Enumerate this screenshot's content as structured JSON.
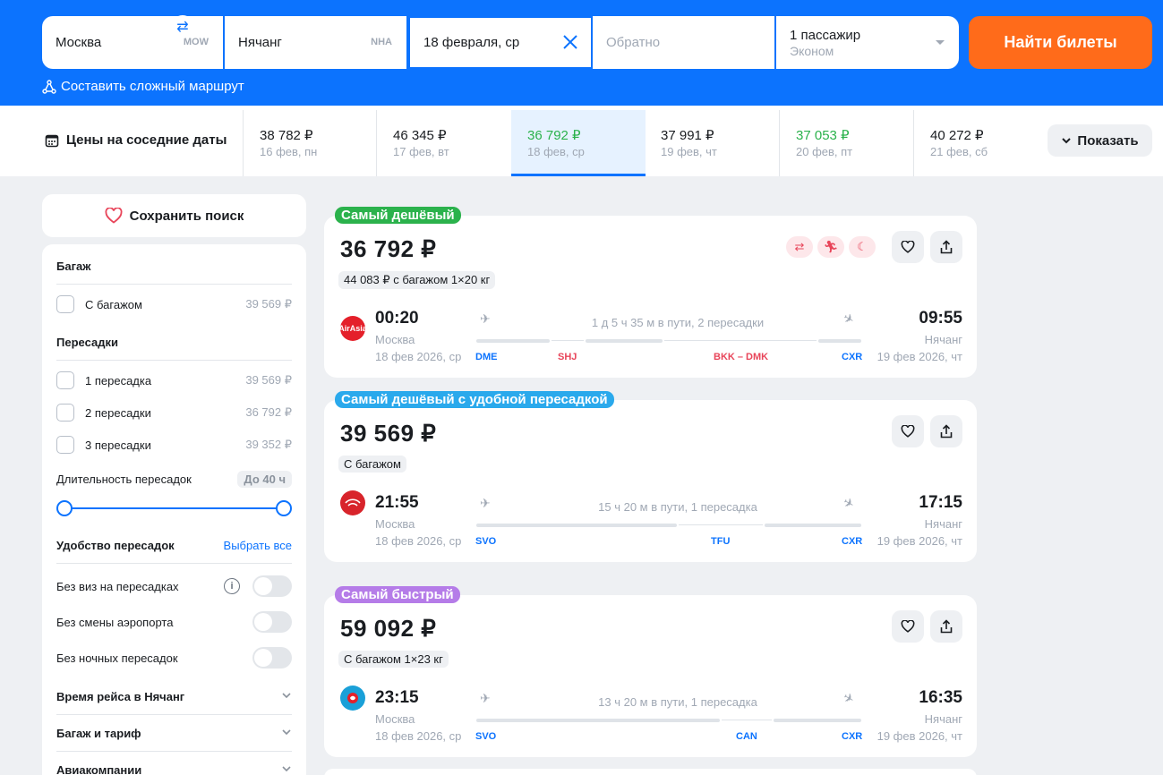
{
  "search": {
    "from": "Москва",
    "from_code": "MOW",
    "to": "Нячанг",
    "to_code": "NHA",
    "date": "18 февраля, ср",
    "return_placeholder": "Обратно",
    "passengers": "1 пассажир",
    "cabin": "Эконом",
    "find_label": "Найти билеты",
    "complex_route": "Составить сложный маршрут"
  },
  "dates": {
    "label": "Цены на соседние даты",
    "show_label": "Показать",
    "items": [
      {
        "price": "38 782 ₽",
        "date": "16 фев, пн"
      },
      {
        "price": "46 345 ₽",
        "date": "17 фев, вт"
      },
      {
        "price": "36 792 ₽",
        "date": "18 фев, ср"
      },
      {
        "price": "37 991 ₽",
        "date": "19 фев, чт"
      },
      {
        "price": "37 053 ₽",
        "date": "20 фев, пт"
      },
      {
        "price": "40 272 ₽",
        "date": "21 фев, сб"
      }
    ]
  },
  "filters": {
    "save_label": "Сохранить поиск",
    "baggage_title": "Багаж",
    "with_baggage": "С багажом",
    "with_baggage_price": "39 569 ₽",
    "stops_title": "Пересадки",
    "stop1": "1 пересадка",
    "stop1_price": "39 569 ₽",
    "stop2": "2 пересадки",
    "stop2_price": "36 792 ₽",
    "stop3": "3 пересадки",
    "stop3_price": "39 352 ₽",
    "duration_label": "Длительность пересадок",
    "duration_value": "До 40 ч",
    "comfort_title": "Удобство пересадок",
    "select_all": "Выбрать все",
    "no_visa": "Без виз на пересадках",
    "no_airport_change": "Без смены аэропорта",
    "no_night": "Без ночных пересадок",
    "flight_time": "Время рейса в Нячанг",
    "baggage_tariff": "Багаж и тариф",
    "airlines": "Авиакомпании"
  },
  "tickets": [
    {
      "badge": "Самый дешёвый",
      "badge_color": "#2bb24c",
      "price": "36 792 ₽",
      "chip": "44 083 ₽ с багажом 1×20 кг",
      "dep_time": "00:20",
      "dep_city": "Москва",
      "dep_date": "18 фев 2026, ср",
      "arr_time": "09:55",
      "arr_city": "Нячанг",
      "arr_date": "19 фев 2026, чт",
      "duration": "1 д 5 ч 35 м в пути, 2 пересадки",
      "codes": [
        "DME",
        "SHJ",
        "BKK – DMK",
        "CXR"
      ],
      "logo_text": "AirAsia"
    },
    {
      "badge": "Самый дешёвый с удобной пересадкой",
      "badge_color": "#2aa9ec",
      "price": "39 569 ₽",
      "chip": "С багажом",
      "dep_time": "21:55",
      "dep_city": "Москва",
      "dep_date": "18 фев 2026, ср",
      "arr_time": "17:15",
      "arr_city": "Нячанг",
      "arr_date": "19 фев 2026, чт",
      "duration": "15 ч 20 м в пути, 1 пересадка",
      "codes": [
        "SVO",
        "TFU",
        "CXR"
      ]
    },
    {
      "badge": "Самый быстрый",
      "badge_color": "#b57ce8",
      "price": "59 092 ₽",
      "chip": "С багажом 1×23 кг",
      "dep_time": "23:15",
      "dep_city": "Москва",
      "dep_date": "18 фев 2026, ср",
      "arr_time": "16:35",
      "arr_city": "Нячанг",
      "arr_date": "19 фев 2026, чт",
      "duration": "13 ч 20 м в пути, 1 пересадка",
      "codes": [
        "SVO",
        "CAN",
        "CXR"
      ]
    }
  ]
}
